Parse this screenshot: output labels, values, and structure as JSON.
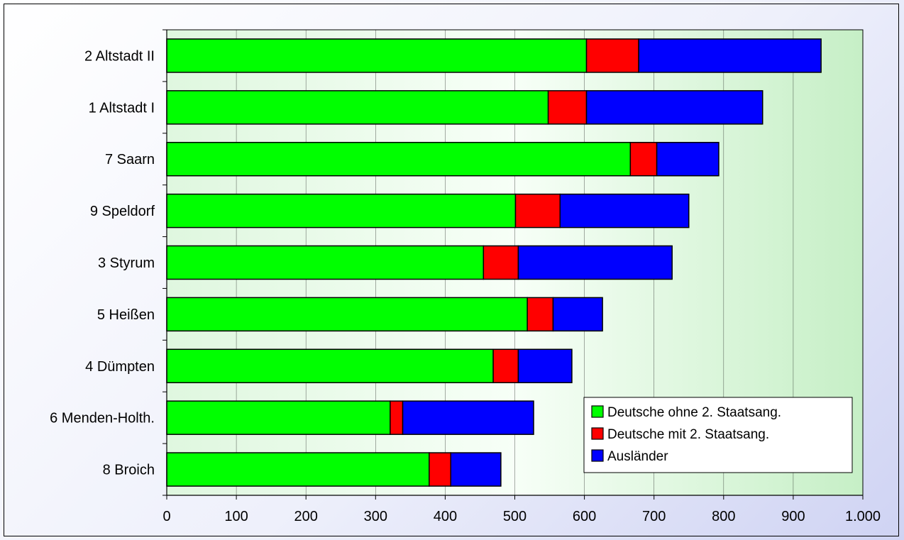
{
  "chart_data": {
    "type": "bar",
    "orientation": "horizontal",
    "stacked": true,
    "categories": [
      "2 Altstadt II",
      "1 Altstadt I",
      "7 Saarn",
      "9 Speldorf",
      "3 Styrum",
      "5 Heißen",
      "4 Dümpten",
      "6 Menden-Holth.",
      "8 Broich"
    ],
    "series": [
      {
        "name": "Deutsche ohne 2. Staatsang.",
        "color": "#00ff00",
        "values": [
          603,
          548,
          666,
          501,
          455,
          518,
          469,
          321,
          377
        ]
      },
      {
        "name": "Deutsche mit 2. Staatsang.",
        "color": "#ff0000",
        "values": [
          75,
          55,
          38,
          64,
          50,
          37,
          36,
          18,
          31
        ]
      },
      {
        "name": "Ausländer",
        "color": "#0000ff",
        "values": [
          262,
          253,
          89,
          185,
          221,
          71,
          77,
          188,
          72
        ]
      }
    ],
    "xticks": [
      "0",
      "100",
      "200",
      "300",
      "400",
      "500",
      "600",
      "700",
      "800",
      "900",
      "1.000"
    ],
    "xlim": [
      0,
      1000
    ],
    "title": "",
    "xlabel": "",
    "ylabel": "",
    "grid": "vertical",
    "legend": "bottom-right"
  }
}
